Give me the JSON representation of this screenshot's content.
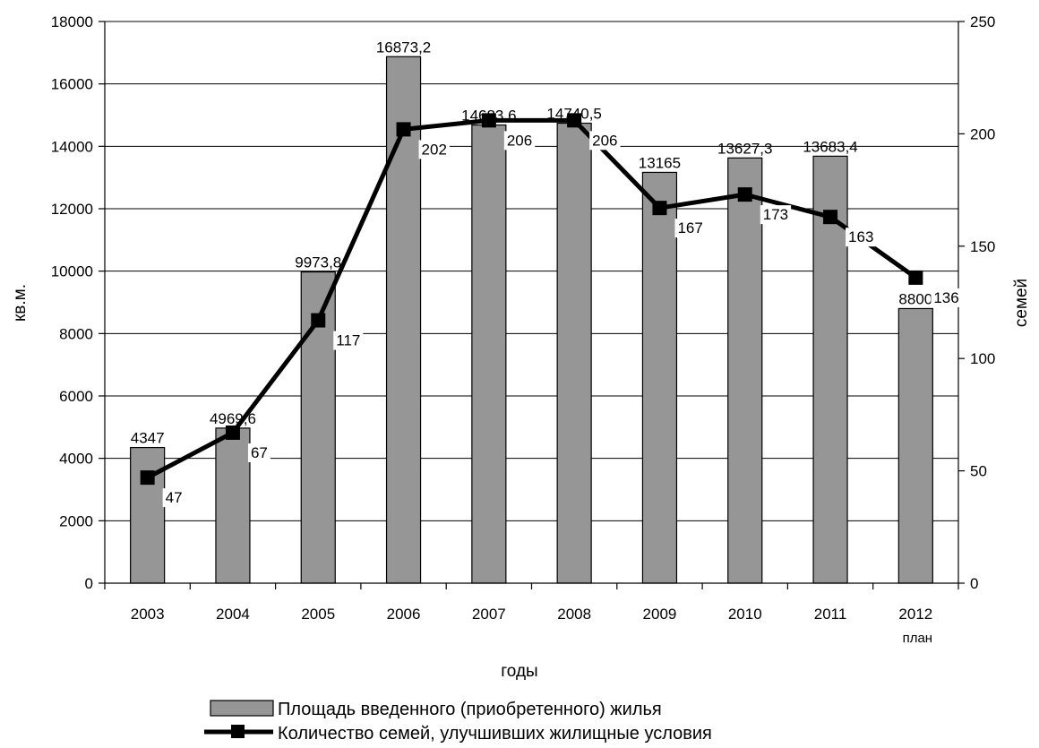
{
  "chart_data": {
    "type": "bar+line",
    "categories": [
      "2003",
      "2004",
      "2005",
      "2006",
      "2007",
      "2008",
      "2009",
      "2010",
      "2011",
      "2012"
    ],
    "category_sublabels": [
      "",
      "",
      "",
      "",
      "",
      "",
      "",
      "",
      "",
      "план"
    ],
    "xlabel": "годы",
    "ylabel_left": "кв.м.",
    "ylabel_right": "семей",
    "ylim_left": [
      0,
      18000
    ],
    "ylim_right": [
      0,
      250
    ],
    "yticks_left": [
      "0",
      "2000",
      "4000",
      "6000",
      "8000",
      "10000",
      "12000",
      "14000",
      "16000",
      "18000"
    ],
    "yticks_right": [
      "0",
      "50",
      "100",
      "150",
      "200",
      "250"
    ],
    "grid": true,
    "legend_position": "bottom",
    "series": [
      {
        "name": "Площадь введенного (приобретенного) жилья",
        "kind": "bar",
        "axis": "left",
        "color": "#969696",
        "values": [
          4347,
          4969.6,
          9973.8,
          16873.2,
          14683.6,
          14740.5,
          13165,
          13627.3,
          13683.4,
          8800
        ],
        "labels": [
          "4347",
          "4969,6",
          "9973,8",
          "16873,2",
          "14683,6",
          "14740,5",
          "13165",
          "13627,3",
          "13683,4",
          "8800"
        ]
      },
      {
        "name": "Количество семей, улучшивших жилищные условия",
        "kind": "line",
        "axis": "right",
        "color": "#000000",
        "values": [
          47,
          67,
          117,
          202,
          206,
          206,
          167,
          173,
          163,
          136
        ],
        "labels": [
          "47",
          "67",
          "117",
          "202",
          "206",
          "206",
          "167",
          "173",
          "163",
          "136"
        ]
      }
    ]
  }
}
